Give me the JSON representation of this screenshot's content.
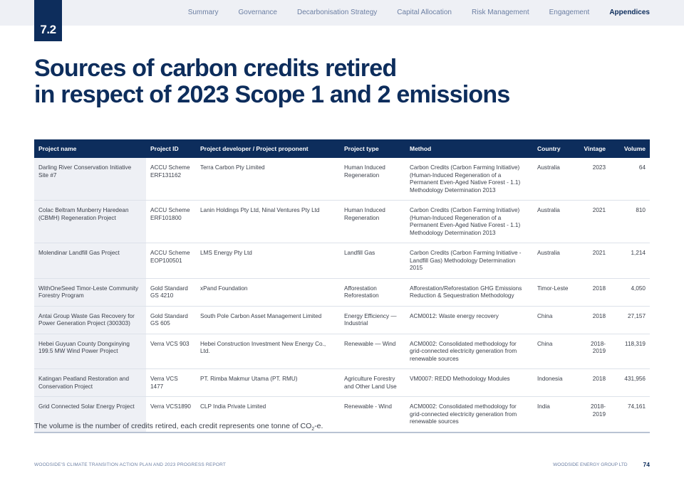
{
  "header": {
    "section": "7.2",
    "nav": [
      {
        "label": "Summary",
        "active": false
      },
      {
        "label": "Governance",
        "active": false
      },
      {
        "label": "Decarbonisation Strategy",
        "active": false
      },
      {
        "label": "Capital Allocation",
        "active": false
      },
      {
        "label": "Risk Management",
        "active": false
      },
      {
        "label": "Engagement",
        "active": false
      },
      {
        "label": "Appendices",
        "active": true
      }
    ]
  },
  "title": {
    "line1": "Sources of carbon credits retired",
    "line2": "in respect of 2023 Scope 1 and 2 emissions"
  },
  "table": {
    "headers": {
      "name": "Project name",
      "id": "Project ID",
      "developer": "Project developer / Project proponent",
      "type": "Project type",
      "method": "Method",
      "country": "Country",
      "vintage": "Vintage",
      "volume": "Volume"
    },
    "rows": [
      {
        "name": "Darling River Conservation Initiative Site #7",
        "id": "ACCU Scheme ERF131162",
        "developer": "Terra Carbon Pty Limited",
        "type": "Human Induced Regeneration",
        "method": "Carbon Credits (Carbon Farming Initiative) (Human-Induced Regeneration of a Permanent Even-Aged Native Forest - 1.1) Methodology Determination 2013",
        "country": "Australia",
        "vintage": "2023",
        "volume": "64"
      },
      {
        "name": "Colac Beltram Munberry Haredean (CBMH) Regeneration Project",
        "id": "ACCU Scheme ERF101800",
        "developer": "Lanin Holdings Pty Ltd, Ninal Ventures Pty Ltd",
        "type": "Human Induced Regeneration",
        "method": "Carbon Credits (Carbon Farming Initiative) (Human-Induced Regeneration of a Permanent Even-Aged Native Forest - 1.1) Methodology Determination 2013",
        "country": "Australia",
        "vintage": "2021",
        "volume": "810"
      },
      {
        "name": "Molendinar Landfill Gas Project",
        "id": "ACCU Scheme EOP100501",
        "developer": "LMS Energy Pty Ltd",
        "type": "Landfill Gas",
        "method": "Carbon Credits (Carbon Farming Initiative - Landfill Gas) Methodology Determination 2015",
        "country": "Australia",
        "vintage": "2021",
        "volume": "1,214"
      },
      {
        "name": "WithOneSeed Timor-Leste Community Forestry Program",
        "id": "Gold Standard GS 4210",
        "developer": "xPand Foundation",
        "type": "Afforestation Reforestation",
        "method": "Afforestation/Reforestation GHG Emissions Reduction & Sequestration Methodology",
        "country": "Timor-Leste",
        "vintage": "2018",
        "volume": "4,050"
      },
      {
        "name": "Antai Group Waste Gas Recovery for Power Generation Project (300303)",
        "id": "Gold Standard GS 605",
        "developer": "South Pole Carbon Asset Management Limited",
        "type": "Energy Efficiency — Industrial",
        "method": "ACM0012: Waste energy recovery",
        "country": "China",
        "vintage": "2018",
        "volume": "27,157"
      },
      {
        "name": "Hebei Guyuan County Dongxinying 199.5 MW Wind Power Project",
        "id": "Verra VCS 903",
        "developer": "Hebei Construction Investment New Energy Co., Ltd.",
        "type": "Renewable — Wind",
        "method": "ACM0002: Consolidated methodology for grid-connected electricity generation from renewable sources",
        "country": "China",
        "vintage": "2018-2019",
        "volume": "118,319"
      },
      {
        "name": "Katingan Peatland Restoration and Conservation Project",
        "id": "Verra VCS 1477",
        "developer": "PT. Rimba Makmur Utama (PT. RMU)",
        "type": "Agriculture Forestry and Other Land Use",
        "method": "VM0007: REDD Methodology Modules",
        "country": "Indonesia",
        "vintage": "2018",
        "volume": "431,956"
      },
      {
        "name": "Grid Connected Solar Energy Project",
        "id": "Verra VCS1890",
        "developer": "CLP India Private Limited",
        "type": "Renewable - Wind",
        "method": "ACM0002: Consolidated methodology for grid-connected electricity generation from renewable sources",
        "country": "India",
        "vintage": "2018-2019",
        "volume": "74,161"
      }
    ]
  },
  "footnote": {
    "text": "The volume is the number of credits retired, each credit represents one tonne of CO",
    "subscript": "2",
    "suffix": "-e."
  },
  "footer": {
    "left": "WOODSIDE'S CLIMATE TRANSITION ACTION PLAN AND 2023 PROGRESS REPORT",
    "company": "WOODSIDE ENERGY GROUP LTD",
    "page": "74"
  },
  "colors": {
    "navy": "#0d2d5c",
    "light_band": "#eef0f5",
    "nav_text": "#6c7fa3"
  }
}
